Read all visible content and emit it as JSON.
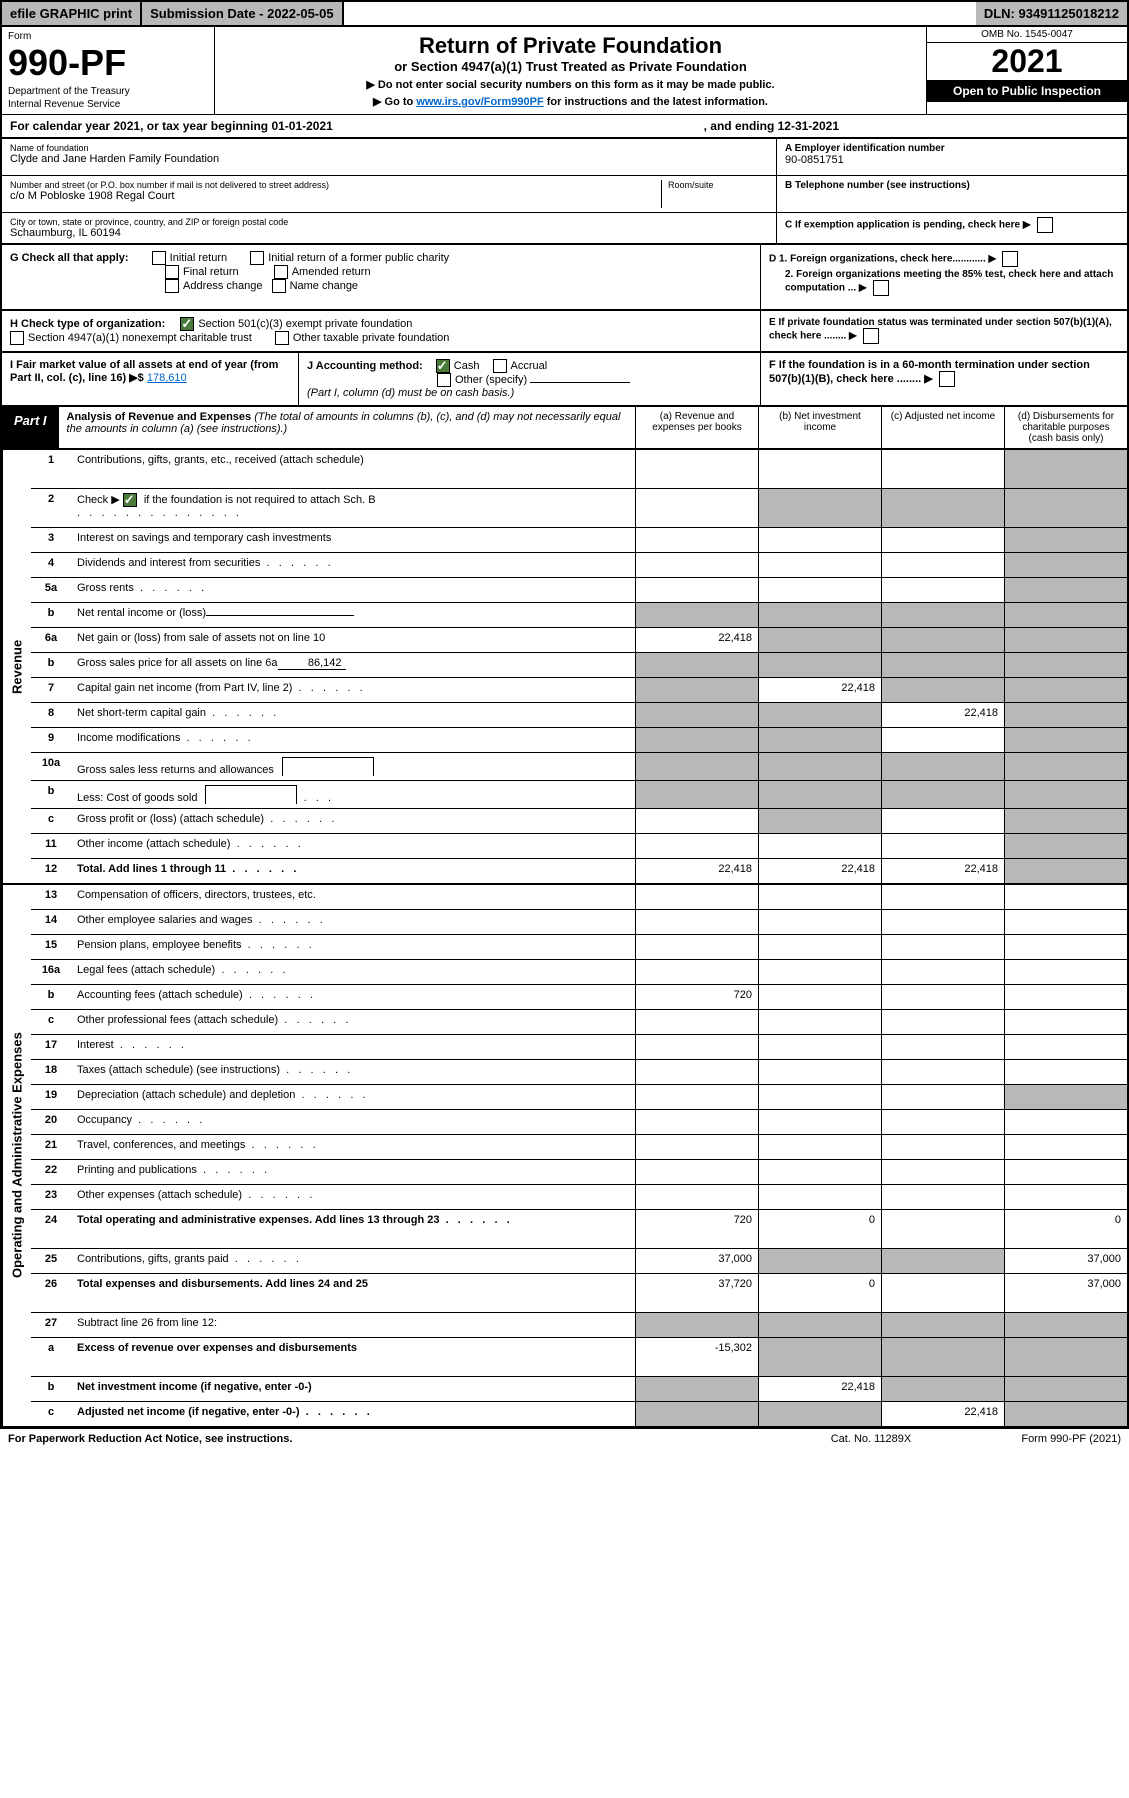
{
  "topbar": {
    "efile": "efile GRAPHIC print",
    "submission": "Submission Date - 2022-05-05",
    "dln": "DLN: 93491125018212"
  },
  "header": {
    "form_word": "Form",
    "form_num": "990-PF",
    "dept": "Department of the Treasury",
    "irs": "Internal Revenue Service",
    "title": "Return of Private Foundation",
    "subtitle": "or Section 4947(a)(1) Trust Treated as Private Foundation",
    "note1": "▶ Do not enter social security numbers on this form as it may be made public.",
    "note2_pre": "▶ Go to ",
    "note2_link": "www.irs.gov/Form990PF",
    "note2_post": " for instructions and the latest information.",
    "omb": "OMB No. 1545-0047",
    "year": "2021",
    "open": "Open to Public Inspection"
  },
  "cal": {
    "pre": "For calendar year 2021, or tax year beginning 01-01-2021",
    "mid_spacer": "",
    "end": ", and ending 12-31-2021"
  },
  "info": {
    "name_label": "Name of foundation",
    "name": "Clyde and Jane Harden Family Foundation",
    "addr_label": "Number and street (or P.O. box number if mail is not delivered to street address)",
    "addr": "c/o M Pobloske 1908 Regal Court",
    "room_label": "Room/suite",
    "city_label": "City or town, state or province, country, and ZIP or foreign postal code",
    "city": "Schaumburg, IL  60194",
    "ein_label": "A Employer identification number",
    "ein": "90-0851751",
    "tel_label": "B Telephone number (see instructions)",
    "c_label": "C If exemption application is pending, check here",
    "d1": "D 1. Foreign organizations, check here............",
    "d2": "2. Foreign organizations meeting the 85% test, check here and attach computation ...",
    "e_label": "E  If private foundation status was terminated under section 507(b)(1)(A), check here ........",
    "f_label": "F  If the foundation is in a 60-month termination under section 507(b)(1)(B), check here ........"
  },
  "g": {
    "label": "G Check all that apply:",
    "opts": [
      "Initial return",
      "Final return",
      "Address change",
      "Initial return of a former public charity",
      "Amended return",
      "Name change"
    ]
  },
  "h": {
    "label": "H Check type of organization:",
    "opt1": "Section 501(c)(3) exempt private foundation",
    "opt2": "Section 4947(a)(1) nonexempt charitable trust",
    "opt3": "Other taxable private foundation"
  },
  "i": {
    "label": "I Fair market value of all assets at end of year (from Part II, col. (c), line 16)",
    "arrow": "▶$",
    "val": "178,610"
  },
  "j": {
    "label": "J Accounting method:",
    "cash": "Cash",
    "accrual": "Accrual",
    "other": "Other (specify)",
    "note": "(Part I, column (d) must be on cash basis.)"
  },
  "part1": {
    "label": "Part I",
    "title": "Analysis of Revenue and Expenses",
    "title_note": " (The total of amounts in columns (b), (c), and (d) may not necessarily equal the amounts in column (a) (see instructions).)",
    "col_a": "(a)  Revenue and expenses per books",
    "col_b": "(b)  Net investment income",
    "col_c": "(c)  Adjusted net income",
    "col_d": "(d)  Disbursements for charitable purposes (cash basis only)"
  },
  "side": {
    "revenue": "Revenue",
    "expenses": "Operating and Administrative Expenses"
  },
  "rows": [
    {
      "n": "1",
      "label": "Contributions, gifts, grants, etc., received (attach schedule)",
      "a": "",
      "b": "",
      "c": "",
      "d": "",
      "tall": true,
      "shade_d": true
    },
    {
      "n": "2",
      "label": "Check ▶",
      "extra": "if the foundation is not required to attach Sch. B",
      "a": "",
      "b": "",
      "c": "",
      "d": "",
      "tall": true,
      "checkbox": true,
      "shade_bcd": true,
      "dotend": true
    },
    {
      "n": "3",
      "label": "Interest on savings and temporary cash investments",
      "a": "",
      "b": "",
      "c": "",
      "d": "",
      "shade_d": true
    },
    {
      "n": "4",
      "label": "Dividends and interest from securities",
      "a": "",
      "b": "",
      "c": "",
      "d": "",
      "shade_d": true,
      "dots": true
    },
    {
      "n": "5a",
      "label": "Gross rents",
      "a": "",
      "b": "",
      "c": "",
      "d": "",
      "shade_d": true,
      "dots": true
    },
    {
      "n": "b",
      "label": "Net rental income or (loss)",
      "a": "",
      "b": "",
      "c": "",
      "d": "",
      "shade_abcd": true,
      "inlinebox": true
    },
    {
      "n": "6a",
      "label": "Net gain or (loss) from sale of assets not on line 10",
      "a": "22,418",
      "b": "",
      "c": "",
      "d": "",
      "shade_bcd": true
    },
    {
      "n": "b",
      "label": "Gross sales price for all assets on line 6a",
      "inlineval": "86,142",
      "a": "",
      "b": "",
      "c": "",
      "d": "",
      "shade_abcd": true
    },
    {
      "n": "7",
      "label": "Capital gain net income (from Part IV, line 2)",
      "a": "",
      "b": "22,418",
      "c": "",
      "d": "",
      "shade_a": true,
      "shade_cd": true,
      "dots": true
    },
    {
      "n": "8",
      "label": "Net short-term capital gain",
      "a": "",
      "b": "",
      "c": "22,418",
      "d": "",
      "shade_ab": true,
      "shade_d": true,
      "dots": true
    },
    {
      "n": "9",
      "label": "Income modifications",
      "a": "",
      "b": "",
      "c": "",
      "d": "",
      "shade_ab": true,
      "shade_d": true,
      "dots": true
    },
    {
      "n": "10a",
      "label": "Gross sales less returns and allowances",
      "a": "",
      "b": "",
      "c": "",
      "d": "",
      "shade_abcd": true,
      "fieldbox": true
    },
    {
      "n": "b",
      "label": "Less: Cost of goods sold",
      "a": "",
      "b": "",
      "c": "",
      "d": "",
      "shade_abcd": true,
      "fieldbox": true,
      "dots3": true
    },
    {
      "n": "c",
      "label": "Gross profit or (loss) (attach schedule)",
      "a": "",
      "b": "",
      "c": "",
      "d": "",
      "shade_b": true,
      "shade_d": true,
      "dots": true
    },
    {
      "n": "11",
      "label": "Other income (attach schedule)",
      "a": "",
      "b": "",
      "c": "",
      "d": "",
      "shade_d": true,
      "dots": true
    },
    {
      "n": "12",
      "label": "Total. Add lines 1 through 11",
      "bold": true,
      "a": "22,418",
      "b": "22,418",
      "c": "22,418",
      "d": "",
      "shade_d": true,
      "dots": true
    }
  ],
  "exp_rows": [
    {
      "n": "13",
      "label": "Compensation of officers, directors, trustees, etc.",
      "a": "",
      "b": "",
      "c": "",
      "d": ""
    },
    {
      "n": "14",
      "label": "Other employee salaries and wages",
      "a": "",
      "b": "",
      "c": "",
      "d": "",
      "dots": true
    },
    {
      "n": "15",
      "label": "Pension plans, employee benefits",
      "a": "",
      "b": "",
      "c": "",
      "d": "",
      "dots": true
    },
    {
      "n": "16a",
      "label": "Legal fees (attach schedule)",
      "a": "",
      "b": "",
      "c": "",
      "d": "",
      "dots": true
    },
    {
      "n": "b",
      "label": "Accounting fees (attach schedule)",
      "a": "720",
      "b": "",
      "c": "",
      "d": "",
      "dots": true
    },
    {
      "n": "c",
      "label": "Other professional fees (attach schedule)",
      "a": "",
      "b": "",
      "c": "",
      "d": "",
      "dots": true
    },
    {
      "n": "17",
      "label": "Interest",
      "a": "",
      "b": "",
      "c": "",
      "d": "",
      "dots": true
    },
    {
      "n": "18",
      "label": "Taxes (attach schedule) (see instructions)",
      "a": "",
      "b": "",
      "c": "",
      "d": "",
      "dots": true
    },
    {
      "n": "19",
      "label": "Depreciation (attach schedule) and depletion",
      "a": "",
      "b": "",
      "c": "",
      "d": "",
      "shade_d": true,
      "dots": true
    },
    {
      "n": "20",
      "label": "Occupancy",
      "a": "",
      "b": "",
      "c": "",
      "d": "",
      "dots": true
    },
    {
      "n": "21",
      "label": "Travel, conferences, and meetings",
      "a": "",
      "b": "",
      "c": "",
      "d": "",
      "dots": true
    },
    {
      "n": "22",
      "label": "Printing and publications",
      "a": "",
      "b": "",
      "c": "",
      "d": "",
      "dots": true
    },
    {
      "n": "23",
      "label": "Other expenses (attach schedule)",
      "a": "",
      "b": "",
      "c": "",
      "d": "",
      "dots": true
    },
    {
      "n": "24",
      "label": "Total operating and administrative expenses. Add lines 13 through 23",
      "bold": true,
      "a": "720",
      "b": "0",
      "c": "",
      "d": "0",
      "tall": true,
      "dots": true
    },
    {
      "n": "25",
      "label": "Contributions, gifts, grants paid",
      "a": "37,000",
      "b": "",
      "c": "",
      "d": "37,000",
      "shade_bc": true,
      "dots": true
    },
    {
      "n": "26",
      "label": "Total expenses and disbursements. Add lines 24 and 25",
      "bold": true,
      "a": "37,720",
      "b": "0",
      "c": "",
      "d": "37,000",
      "tall": true
    },
    {
      "n": "27",
      "label": "Subtract line 26 from line 12:",
      "a": "",
      "b": "",
      "c": "",
      "d": "",
      "shade_abcd": true
    },
    {
      "n": "a",
      "label": "Excess of revenue over expenses and disbursements",
      "bold": true,
      "a": "-15,302",
      "b": "",
      "c": "",
      "d": "",
      "shade_bcd": true,
      "tall": true
    },
    {
      "n": "b",
      "label": "Net investment income (if negative, enter -0-)",
      "bold": true,
      "a": "",
      "b": "22,418",
      "c": "",
      "d": "",
      "shade_a": true,
      "shade_cd": true
    },
    {
      "n": "c",
      "label": "Adjusted net income (if negative, enter -0-)",
      "bold": true,
      "a": "",
      "b": "",
      "c": "22,418",
      "d": "",
      "shade_ab": true,
      "shade_d": true,
      "dots": true
    }
  ],
  "footer": {
    "left": "For Paperwork Reduction Act Notice, see instructions.",
    "mid": "Cat. No. 11289X",
    "right": "Form 990-PF (2021)"
  },
  "colors": {
    "shade": "#b8b8b8",
    "link": "#0066cc",
    "check": "#4a7a3a"
  }
}
